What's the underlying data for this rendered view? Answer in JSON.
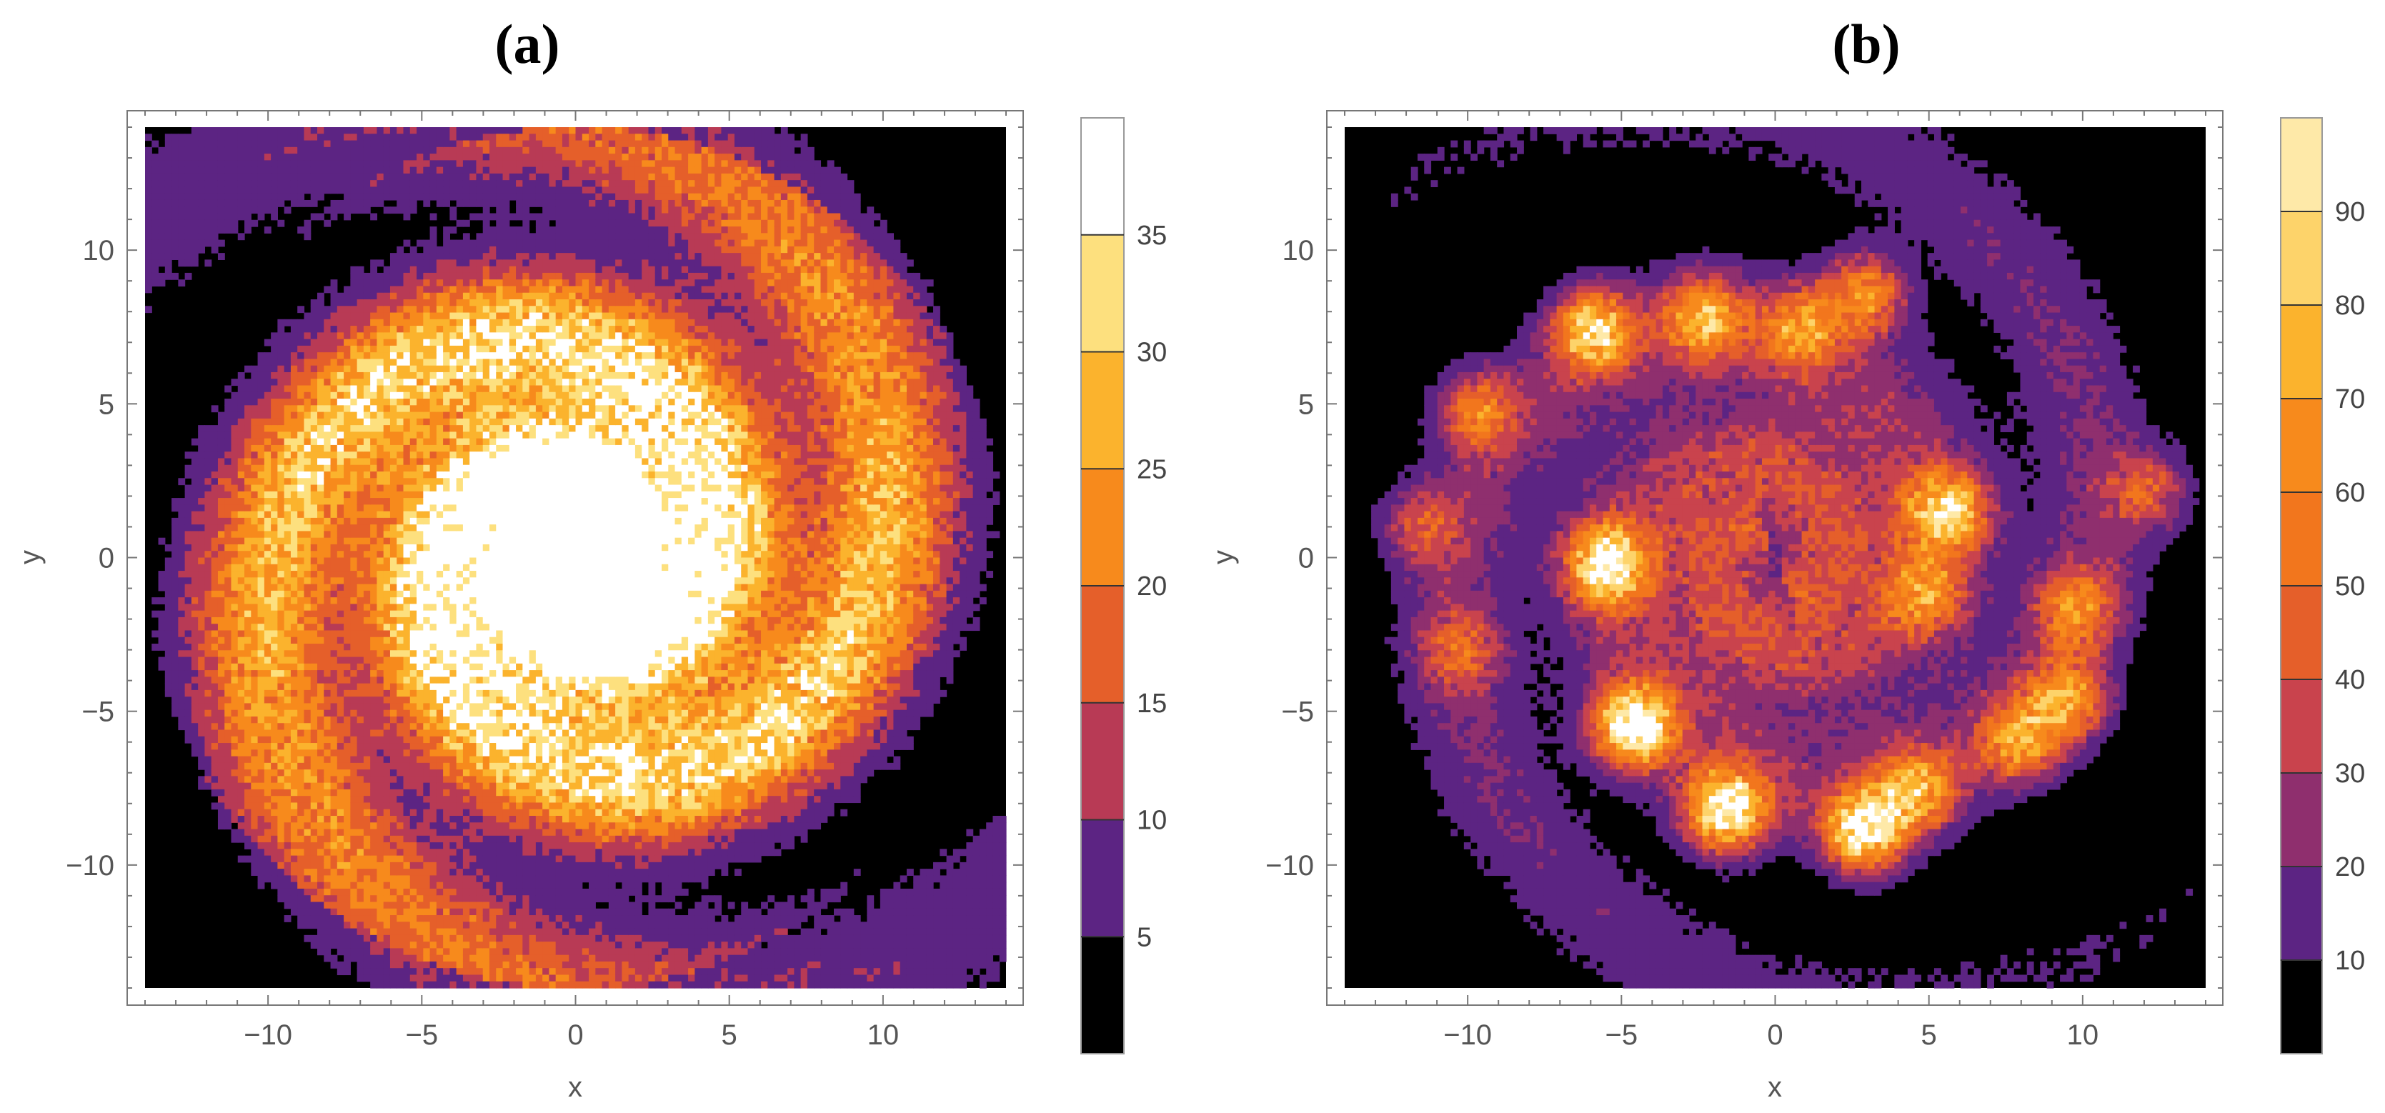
{
  "figure": {
    "panels": [
      {
        "title": "(a)"
      },
      {
        "title": "(b)"
      }
    ]
  },
  "chart_data": [
    {
      "type": "heatmap",
      "subtype": "filled-contour",
      "title": "(a)",
      "xlabel": "x",
      "ylabel": "y",
      "xlim": [
        -14,
        14
      ],
      "ylim": [
        -14,
        14
      ],
      "xticks": [
        -10,
        -5,
        0,
        5,
        10
      ],
      "yticks": [
        -10,
        -5,
        0,
        5,
        10
      ],
      "xtick_labels": [
        "−10",
        "−5",
        "0",
        "5",
        "10"
      ],
      "ytick_labels": [
        "−10",
        "−5",
        "0",
        "5",
        "10"
      ],
      "colorbar": {
        "levels": [
          0,
          5,
          10,
          15,
          20,
          25,
          30,
          35,
          40
        ],
        "tick_labels": [
          "5",
          "10",
          "15",
          "20",
          "25",
          "30",
          "35"
        ],
        "colors": [
          "#000000",
          "#5c2483",
          "#b83a55",
          "#e55f2a",
          "#f78a1c",
          "#fbb32d",
          "#fde07e",
          "#ffffff"
        ]
      },
      "description_data": {
        "structure": "two-armed logarithmic spiral density, rotation direction clockwise inward",
        "arms": 2,
        "peak_value": 37,
        "peak_location": [
          3,
          6.5
        ]
      }
    },
    {
      "type": "heatmap",
      "subtype": "filled-contour",
      "title": "(b)",
      "xlabel": "x",
      "ylabel": "y",
      "xlim": [
        -14,
        14
      ],
      "ylim": [
        -14,
        14
      ],
      "xticks": [
        -10,
        -5,
        0,
        5,
        10
      ],
      "yticks": [
        -10,
        -5,
        0,
        5,
        10
      ],
      "xtick_labels": [
        "−10",
        "−5",
        "0",
        "5",
        "10"
      ],
      "ytick_labels": [
        "−10",
        "−5",
        "0",
        "5",
        "10"
      ],
      "colorbar": {
        "levels": [
          0,
          10,
          20,
          30,
          40,
          50,
          60,
          70,
          80,
          90,
          100
        ],
        "tick_labels": [
          "10",
          "20",
          "30",
          "40",
          "50",
          "60",
          "70",
          "80",
          "90"
        ],
        "colors": [
          "#000000",
          "#5c2483",
          "#8f2f6e",
          "#c9434d",
          "#e55f2a",
          "#f2761d",
          "#f78a1c",
          "#fbb32d",
          "#fdd36a",
          "#fee9a8",
          "#ffffff"
        ]
      },
      "description_data": {
        "structure": "two-armed spiral with discrete clumps along arms",
        "arms": 2,
        "clumps": [
          {
            "x": -5.9,
            "y": 7.4,
            "peak": 75
          },
          {
            "x": -2.3,
            "y": 7.8,
            "peak": 60
          },
          {
            "x": 2.9,
            "y": 8.6,
            "peak": 55
          },
          {
            "x": 0.8,
            "y": 7.4,
            "peak": 50
          },
          {
            "x": -9.7,
            "y": 4.8,
            "peak": 45
          },
          {
            "x": 5.6,
            "y": 1.5,
            "peak": 70
          },
          {
            "x": -5.5,
            "y": -0.2,
            "peak": 85
          },
          {
            "x": -4.6,
            "y": -5.5,
            "peak": 95
          },
          {
            "x": -1.6,
            "y": -8.2,
            "peak": 95
          },
          {
            "x": 2.9,
            "y": -8.9,
            "peak": 90
          },
          {
            "x": 4.6,
            "y": -7.6,
            "peak": 60
          },
          {
            "x": 8.0,
            "y": -6.0,
            "peak": 55
          },
          {
            "x": 9.5,
            "y": -4.7,
            "peak": 55
          },
          {
            "x": 9.8,
            "y": -1.7,
            "peak": 45
          },
          {
            "x": 4.9,
            "y": -1.2,
            "peak": 45
          },
          {
            "x": 12.2,
            "y": 2.2,
            "peak": 35
          },
          {
            "x": -11.5,
            "y": 1.0,
            "peak": 30
          },
          {
            "x": -10.2,
            "y": -3.0,
            "peak": 30
          }
        ]
      }
    }
  ]
}
